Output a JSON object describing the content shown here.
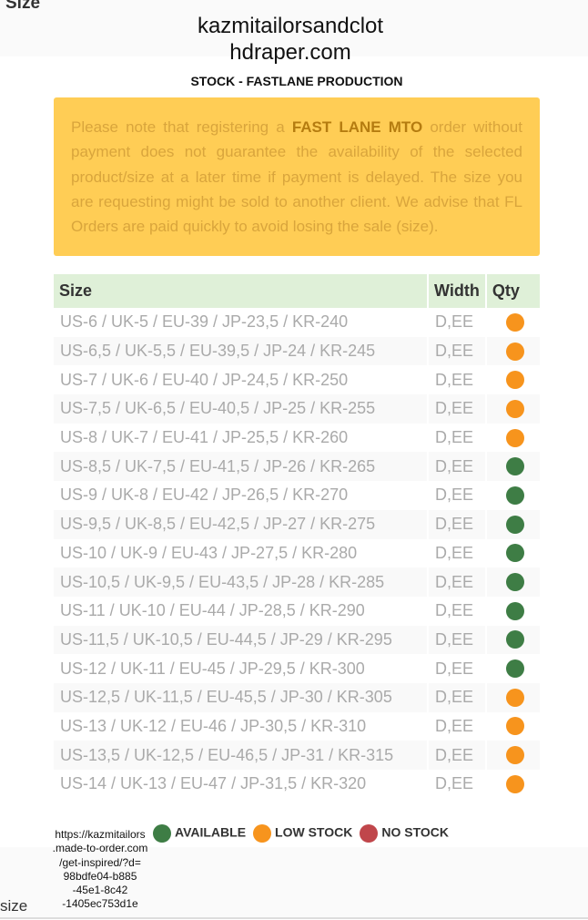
{
  "top_label": "Size",
  "header": {
    "title_lines": [
      "kazmitailorsandclot",
      "hdraper.com"
    ],
    "subtitle": "STOCK - FASTLANE PRODUCTION"
  },
  "notice": {
    "before": "Please note that registering a ",
    "bold": "FAST LANE MTO",
    "after": " order without payment does not guarantee the availability of the selected product/size at a later time if payment is delayed. The size you are requesting might be sold to another client. We advise that FL Orders are paid quickly to avoid losing the sale (size)."
  },
  "table": {
    "headers": [
      "Size",
      "Width",
      "Qty"
    ],
    "rows": [
      {
        "size": "US-6 / UK-5 / EU-39 / JP-23,5 / KR-240",
        "width": "D,EE",
        "color": "#f7941d"
      },
      {
        "size": "US-6,5 / UK-5,5 / EU-39,5 / JP-24 / KR-245",
        "width": "D,EE",
        "color": "#f7941d"
      },
      {
        "size": "US-7 / UK-6 / EU-40 / JP-24,5 / KR-250",
        "width": "D,EE",
        "color": "#f7941d"
      },
      {
        "size": "US-7,5 / UK-6,5 / EU-40,5 / JP-25 / KR-255",
        "width": "D,EE",
        "color": "#f7941d"
      },
      {
        "size": "US-8 / UK-7 / EU-41 / JP-25,5 / KR-260",
        "width": "D,EE",
        "color": "#f7941d"
      },
      {
        "size": "US-8,5 / UK-7,5 / EU-41,5 / JP-26 / KR-265",
        "width": "D,EE",
        "color": "#3e7d45"
      },
      {
        "size": "US-9 / UK-8 / EU-42 / JP-26,5 / KR-270",
        "width": "D,EE",
        "color": "#3e7d45"
      },
      {
        "size": "US-9,5 / UK-8,5 / EU-42,5 / JP-27 / KR-275",
        "width": "D,EE",
        "color": "#3e7d45"
      },
      {
        "size": "US-10 / UK-9 / EU-43 / JP-27,5 / KR-280",
        "width": "D,EE",
        "color": "#3e7d45"
      },
      {
        "size": "US-10,5 / UK-9,5 / EU-43,5 / JP-28 / KR-285",
        "width": "D,EE",
        "color": "#3e7d45"
      },
      {
        "size": "US-11 / UK-10 / EU-44 / JP-28,5 / KR-290",
        "width": "D,EE",
        "color": "#3e7d45"
      },
      {
        "size": "US-11,5 / UK-10,5 / EU-44,5 / JP-29 / KR-295",
        "width": "D,EE",
        "color": "#3e7d45"
      },
      {
        "size": "US-12 / UK-11 / EU-45 / JP-29,5 / KR-300",
        "width": "D,EE",
        "color": "#3e7d45"
      },
      {
        "size": "US-12,5 / UK-11,5 / EU-45,5 / JP-30 / KR-305",
        "width": "D,EE",
        "color": "#f7941d"
      },
      {
        "size": "US-13 / UK-12 / EU-46 / JP-30,5 / KR-310",
        "width": "D,EE",
        "color": "#f7941d"
      },
      {
        "size": "US-13,5 / UK-12,5 / EU-46,5 / JP-31 / KR-315",
        "width": "D,EE",
        "color": "#f7941d"
      },
      {
        "size": "US-14 / UK-13 / EU-47 / JP-31,5 / KR-320",
        "width": "D,EE",
        "color": "#f7941d"
      }
    ]
  },
  "legend": [
    {
      "name": "AVAILABLE",
      "color": "#3e7d45"
    },
    {
      "name": "LOW STOCK",
      "color": "#f7941d"
    },
    {
      "name": "NO STOCK",
      "color": "#c0464b"
    }
  ],
  "url_lines": [
    "https://kazmitailors",
    ".made-to-order.com",
    "/get-inspired/?d=",
    "98bdfe04-b885",
    "-45e1-8c42",
    "-1405ec753d1e"
  ],
  "bottom_label": "size"
}
